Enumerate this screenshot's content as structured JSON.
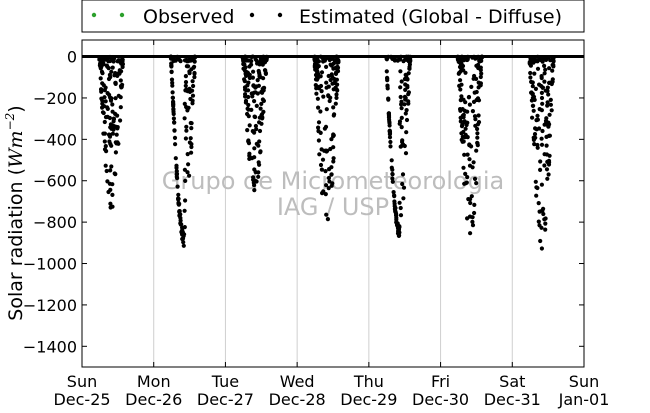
{
  "chart_data": {
    "type": "scatter",
    "ylabel_main": "Solar radiation (",
    "ylabel_unit_base": "Wm",
    "ylabel_unit_exp": "−2",
    "ylabel_close": ")",
    "ylim": [
      -1500,
      80
    ],
    "y_ticks": [
      0,
      -200,
      -400,
      -600,
      -800,
      -1000,
      -1200,
      -1400
    ],
    "y_tick_labels": [
      "0",
      "−200",
      "−400",
      "−600",
      "−800",
      "−1000",
      "−1200",
      "−1400"
    ],
    "xlim": [
      0,
      7
    ],
    "x_tick_labels": [
      {
        "day": "Sun",
        "date": "Dec-25"
      },
      {
        "day": "Mon",
        "date": "Dec-26"
      },
      {
        "day": "Tue",
        "date": "Dec-27"
      },
      {
        "day": "Wed",
        "date": "Dec-28"
      },
      {
        "day": "Thu",
        "date": "Dec-29"
      },
      {
        "day": "Fri",
        "date": "Dec-30"
      },
      {
        "day": "Sat",
        "date": "Dec-31"
      },
      {
        "day": "Sun",
        "date": "Jan-01"
      }
    ],
    "grid": "vertical",
    "legend_position": "top",
    "watermark": [
      "Grupo de Micrometeorologia",
      "IAG / USP"
    ],
    "series": [
      {
        "name": "Observed",
        "color": "#2ca02c",
        "marker": "dot",
        "values": []
      },
      {
        "name": "Estimated (Global - Diffuse)",
        "color": "#000000",
        "marker": "dot",
        "days": [
          {
            "day": "Dec-25",
            "peak": -740
          },
          {
            "day": "Dec-26",
            "peak": -920
          },
          {
            "day": "Dec-27",
            "peak": -660
          },
          {
            "day": "Dec-28",
            "peak": -850
          },
          {
            "day": "Dec-29",
            "peak": -880
          },
          {
            "day": "Dec-30",
            "peak": -890
          },
          {
            "day": "Dec-31",
            "peak": -930
          }
        ]
      }
    ],
    "colors": {
      "axis": "#000000",
      "grid": "#cfcfcf",
      "watermark": "#bdbdbd"
    }
  }
}
